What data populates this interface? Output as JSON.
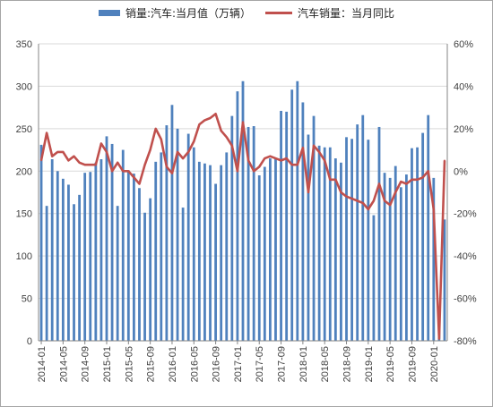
{
  "chart_data": {
    "type": "bar+line",
    "title": "",
    "legend": {
      "placement": "top-center"
    },
    "grid": true,
    "x": [
      "2014-01",
      "2014-02",
      "2014-03",
      "2014-04",
      "2014-05",
      "2014-06",
      "2014-07",
      "2014-08",
      "2014-09",
      "2014-10",
      "2014-11",
      "2014-12",
      "2015-01",
      "2015-02",
      "2015-03",
      "2015-04",
      "2015-05",
      "2015-06",
      "2015-07",
      "2015-08",
      "2015-09",
      "2015-10",
      "2015-11",
      "2015-12",
      "2016-01",
      "2016-02",
      "2016-03",
      "2016-04",
      "2016-05",
      "2016-06",
      "2016-07",
      "2016-08",
      "2016-09",
      "2016-10",
      "2016-11",
      "2016-12",
      "2017-01",
      "2017-02",
      "2017-03",
      "2017-04",
      "2017-05",
      "2017-06",
      "2017-07",
      "2017-08",
      "2017-09",
      "2017-10",
      "2017-11",
      "2017-12",
      "2018-01",
      "2018-02",
      "2018-03",
      "2018-04",
      "2018-05",
      "2018-06",
      "2018-07",
      "2018-08",
      "2018-09",
      "2018-10",
      "2018-11",
      "2018-12",
      "2019-01",
      "2019-02",
      "2019-03",
      "2019-04",
      "2019-05",
      "2019-06",
      "2019-07",
      "2019-08",
      "2019-09",
      "2019-10",
      "2019-11",
      "2019-12",
      "2020-01",
      "2020-02",
      "2020-03"
    ],
    "x_tick_labels": [
      "2014-01",
      "2014-05",
      "2014-09",
      "2015-01",
      "2015-05",
      "2015-09",
      "2016-01",
      "2016-05",
      "2016-09",
      "2017-01",
      "2017-05",
      "2017-09",
      "2018-01",
      "2018-05",
      "2018-09",
      "2019-01",
      "2019-05",
      "2019-09",
      "2020-01"
    ],
    "y_left": {
      "ticks": [
        "0",
        "50",
        "100",
        "150",
        "200",
        "250",
        "300",
        "350"
      ],
      "min": 0,
      "max": 350
    },
    "y_right": {
      "ticks": [
        "-80%",
        "-60%",
        "-40%",
        "-20%",
        "0%",
        "20%",
        "40%",
        "60%"
      ],
      "min": -80,
      "max": 60
    },
    "series": [
      {
        "name": "销量:汽车:当月值（万辆）",
        "type": "bar",
        "axis": "left",
        "color": "#4f81bd",
        "values": [
          231,
          159,
          214,
          200,
          191,
          184,
          161,
          172,
          198,
          199,
          210,
          214,
          241,
          232,
          159,
          225,
          201,
          197,
          180,
          151,
          168,
          211,
          222,
          254,
          278,
          250,
          157,
          244,
          228,
          211,
          209,
          207,
          185,
          207,
          222,
          265,
          294,
          306,
          252,
          253,
          195,
          205,
          215,
          215,
          271,
          270,
          296,
          306,
          281,
          243,
          265,
          230,
          228,
          228,
          215,
          210,
          240,
          238,
          255,
          266,
          237,
          148,
          252,
          198,
          192,
          206,
          181,
          196,
          227,
          228,
          245,
          266,
          192,
          31,
          143
        ]
      },
      {
        "name": "汽车销量：当月同比",
        "type": "line",
        "axis": "right",
        "color": "#c0504d",
        "values": [
          5,
          18,
          7,
          9,
          9,
          5,
          7,
          4,
          3,
          3,
          3,
          13,
          9,
          0,
          4,
          0,
          0,
          -3,
          -6,
          3,
          10,
          20,
          15,
          2,
          -1,
          9,
          6,
          9,
          14,
          22,
          24,
          25,
          27,
          19,
          16,
          12,
          0,
          23,
          5,
          0,
          2,
          6,
          7,
          6,
          5,
          6,
          3,
          3,
          11,
          -10,
          12,
          9,
          5,
          -4,
          -4,
          -10,
          -12,
          -13,
          -14,
          -15,
          -18,
          -14,
          -6,
          -14,
          -16,
          -10,
          -5,
          -6,
          -4,
          -4,
          -3,
          0,
          -18,
          -79,
          5
        ]
      }
    ]
  }
}
